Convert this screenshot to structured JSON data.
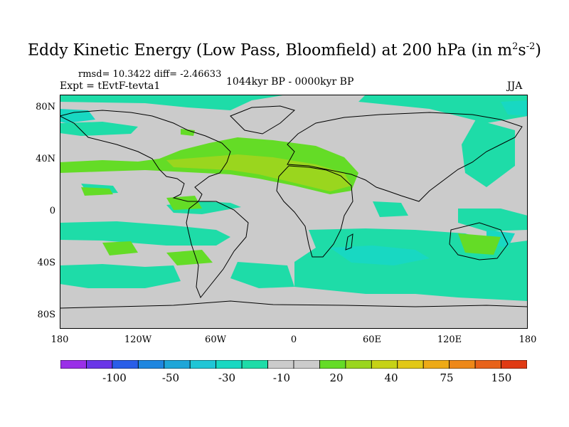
{
  "title": {
    "main": "Eddy Kinetic Energy (Low Pass, Bloomfield) at 200 hPa (in m",
    "sup1": "2",
    "mid": "s",
    "sup2": "-2",
    "close": ")"
  },
  "stats": "rmsd= 10.3422 diff= -2.46633",
  "experiment": "Expt = tEvtF-tevta1",
  "period": "1044kyr BP - 0000kyr BP",
  "season": "JJA",
  "lat_labels": [
    "80N",
    "40N",
    "0",
    "40S",
    "80S"
  ],
  "lon_labels": [
    "180",
    "120W",
    "60W",
    "0",
    "60E",
    "120E",
    "180"
  ],
  "colorbar": {
    "colors": [
      "#9a2fe8",
      "#6a36e8",
      "#2a5ee8",
      "#1e86e0",
      "#1ea6d8",
      "#20c6d6",
      "#18d8c2",
      "#1edca8",
      "#cbcbcb",
      "#cbcbcb",
      "#64dc26",
      "#9ad61e",
      "#c6d216",
      "#e2c816",
      "#eeaa16",
      "#ee8818",
      "#e8621a",
      "#e03a14"
    ],
    "labels": [
      "-100",
      "-50",
      "-30",
      "-10",
      "20",
      "40",
      "75",
      "150"
    ]
  }
}
